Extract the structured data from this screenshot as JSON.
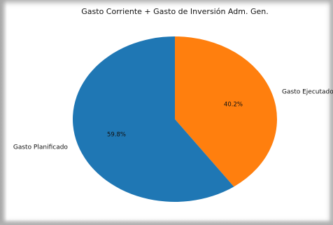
{
  "chart_data": {
    "type": "pie",
    "title": "Gasto Corriente + Gasto de Inversión Adm. Gen.",
    "slices": [
      {
        "label": "Gasto Ejecutado",
        "value": 40.2,
        "pct_label": "40.2%",
        "color": "#ff7f0e"
      },
      {
        "label": "Gasto Planificado",
        "value": 59.8,
        "pct_label": "59.8%",
        "color": "#1f77b4"
      }
    ],
    "start_angle_deg": 90,
    "direction": "clockwise",
    "legend": "none"
  }
}
